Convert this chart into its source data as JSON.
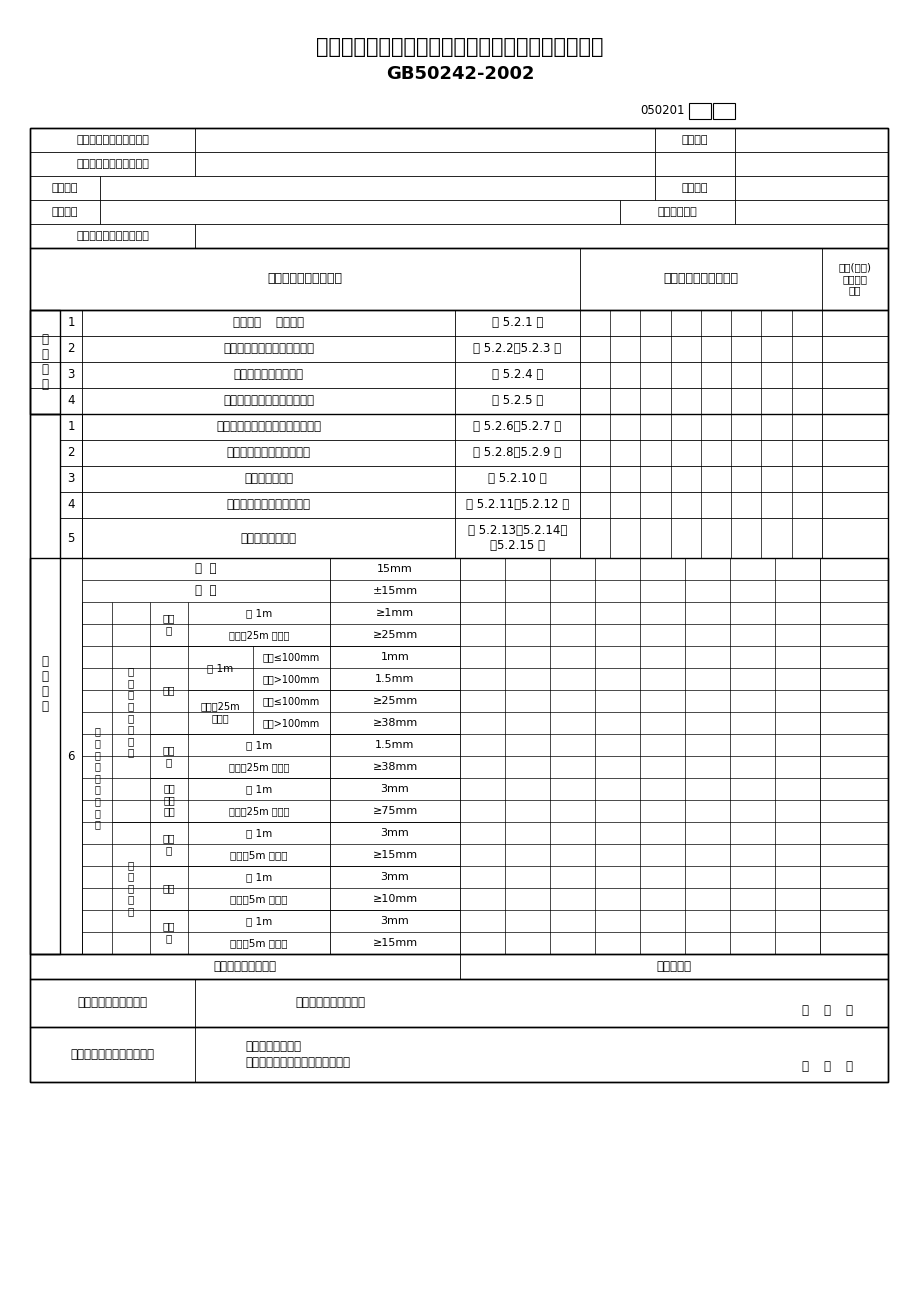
{
  "title_line1": "室内排水管道及配件安装工程检验批质量验收记录表",
  "title_line2": "GB50242-2002",
  "form_id": "050201",
  "bg_color": "#ffffff",
  "text_color": "#000000",
  "font_cjk": "SimSun",
  "font_fallback": "DejaVu Sans"
}
